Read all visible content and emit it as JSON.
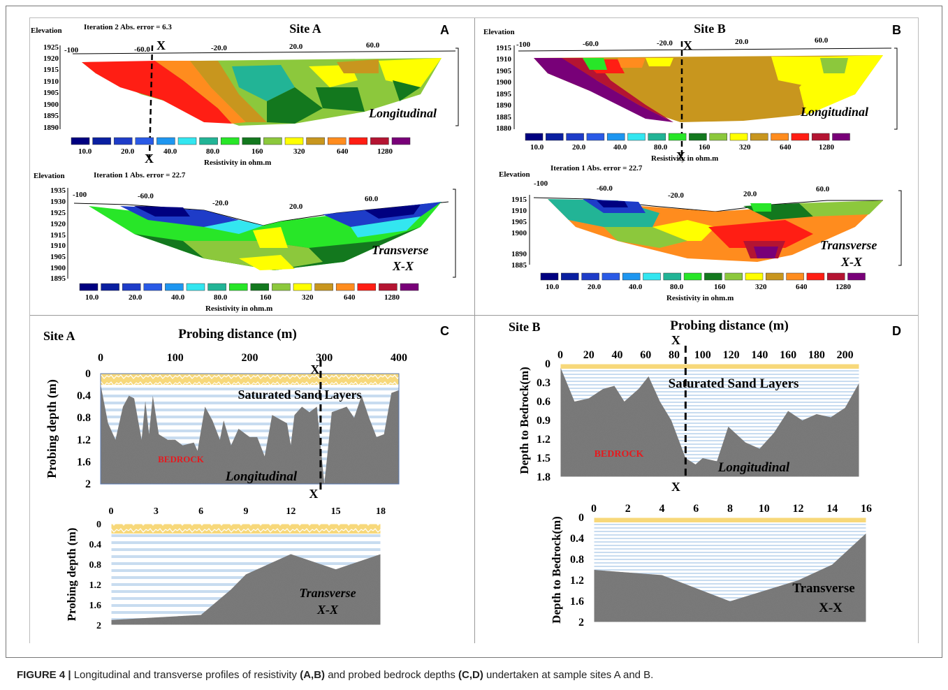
{
  "caption": {
    "label": "FIGURE 4 |",
    "text_1": "Longitudinal and transverse profiles of resistivity ",
    "ref_1": "(A,B)",
    "text_2": " and probed bedrock depths ",
    "ref_2": "(C,D)",
    "text_3": " undertaken at sample sites A and B."
  },
  "colors": {
    "scale": [
      "#000080",
      "#0a1fa0",
      "#1e3cc8",
      "#2a5ae6",
      "#1e96f0",
      "#33e6f0",
      "#22b496",
      "#28e628",
      "#13781e",
      "#8cc83c",
      "#ffff00",
      "#c8961e",
      "#ff8c1e",
      "#ff1e14",
      "#b41432",
      "#780078"
    ],
    "sand": "#c8dcf0",
    "topsoil": "#f7d87a",
    "bedrock_label": "#e6191e"
  },
  "panelA": {
    "letter": "A",
    "site": "Site A",
    "long": {
      "elevation_label": "Elevation",
      "iteration": "Iteration 2 Abs. error = 6.3",
      "x_ticks": [
        "-100",
        "-60.0",
        "-20.0",
        "20.0",
        "60.0"
      ],
      "y_ticks": [
        "1925",
        "1920",
        "1915",
        "1910",
        "1905",
        "1900",
        "1895",
        "1890"
      ],
      "profile_label": "Longitudinal",
      "section_mark": "X",
      "scale_labels": [
        "10.0",
        "20.0",
        "40.0",
        "80.0",
        "160",
        "320",
        "640",
        "1280"
      ],
      "scale_title": "Resistivity in ohm.m"
    },
    "trans": {
      "elevation_label": "Elevation",
      "iteration": "Iteration 1 Abs. error = 22.7",
      "x_ticks": [
        "-100",
        "-60.0",
        "-20.0",
        "20.0",
        "60.0"
      ],
      "y_ticks": [
        "1935",
        "1930",
        "1925",
        "1920",
        "1915",
        "1910",
        "1905",
        "1900",
        "1895"
      ],
      "profile_label_1": "Transverse",
      "profile_label_2": "X-X",
      "scale_labels": [
        "10.0",
        "20.0",
        "40.0",
        "80.0",
        "160",
        "320",
        "640",
        "1280"
      ],
      "scale_title": "Resistivity in ohm.m"
    }
  },
  "panelB": {
    "letter": "B",
    "site": "Site B",
    "long": {
      "elevation_label": "Elevation",
      "x_ticks": [
        "-100",
        "-60.0",
        "-20.0",
        "20.0",
        "60.0"
      ],
      "y_ticks": [
        "1915",
        "1910",
        "1905",
        "1900",
        "1895",
        "1890",
        "1885",
        "1880"
      ],
      "profile_label": "Longitudinal",
      "section_mark": "X",
      "scale_labels": [
        "10.0",
        "20.0",
        "40.0",
        "80.0",
        "160",
        "320",
        "640",
        "1280"
      ],
      "scale_title": "Resistivity in ohm.m"
    },
    "trans": {
      "elevation_label": "Elevation",
      "iteration": "Iteration 1 Abs. error = 22.7",
      "x_ticks": [
        "-100",
        "-60.0",
        "-20.0",
        "20.0",
        "60.0"
      ],
      "y_ticks": [
        "1915",
        "1910",
        "1905",
        "1900",
        "1890",
        "1885"
      ],
      "profile_label_1": "Transverse",
      "profile_label_2": "X-X",
      "scale_labels": [
        "10.0",
        "20.0",
        "40.0",
        "80.0",
        "160",
        "320",
        "640",
        "1280"
      ],
      "scale_title": "Resistivity in ohm.m"
    }
  },
  "panelC": {
    "letter": "C",
    "site": "Site A",
    "xlabel": "Probing distance (m)",
    "long": {
      "ylabel": "Probing depth (m)",
      "x_ticks": [
        "0",
        "100",
        "200",
        "300",
        "400"
      ],
      "y_ticks": [
        "0",
        "0.4",
        "0.8",
        "1.2",
        "1.6",
        "2"
      ],
      "layer_label": "Saturated Sand Layers",
      "bedrock_label": "BEDROCK",
      "profile_label": "Longitudinal",
      "section_mark": "X",
      "profile": [
        [
          0,
          0.2
        ],
        [
          10,
          0.9
        ],
        [
          20,
          1.2
        ],
        [
          30,
          0.6
        ],
        [
          38,
          0.4
        ],
        [
          45,
          0.45
        ],
        [
          55,
          1.2
        ],
        [
          60,
          0.5
        ],
        [
          65,
          1.1
        ],
        [
          70,
          0.4
        ],
        [
          78,
          1.1
        ],
        [
          90,
          1.2
        ],
        [
          100,
          1.2
        ],
        [
          110,
          1.3
        ],
        [
          125,
          1.25
        ],
        [
          130,
          1.4
        ],
        [
          140,
          0.6
        ],
        [
          150,
          0.85
        ],
        [
          160,
          1.2
        ],
        [
          165,
          0.85
        ],
        [
          175,
          1.3
        ],
        [
          185,
          1.0
        ],
        [
          200,
          1.15
        ],
        [
          210,
          1.15
        ],
        [
          220,
          1.5
        ],
        [
          230,
          0.75
        ],
        [
          250,
          0.9
        ],
        [
          255,
          1.3
        ],
        [
          260,
          0.75
        ],
        [
          270,
          0.6
        ],
        [
          280,
          0.7
        ],
        [
          290,
          0.6
        ],
        [
          300,
          2.0
        ],
        [
          310,
          0.7
        ],
        [
          330,
          0.6
        ],
        [
          340,
          0.8
        ],
        [
          350,
          0.4
        ],
        [
          360,
          0.8
        ],
        [
          370,
          1.15
        ],
        [
          380,
          1.1
        ],
        [
          390,
          0.35
        ],
        [
          400,
          0.3
        ]
      ]
    },
    "trans": {
      "ylabel": "Probing depth (m)",
      "x_ticks": [
        "0",
        "3",
        "6",
        "9",
        "12",
        "15",
        "18"
      ],
      "y_ticks": [
        "0",
        "0.4",
        "0.8",
        "1.2",
        "1.6",
        "2"
      ],
      "profile_label_1": "Transverse",
      "profile_label_2": "X-X",
      "profile": [
        [
          0,
          1.9
        ],
        [
          3,
          1.85
        ],
        [
          6,
          1.8
        ],
        [
          8,
          1.3
        ],
        [
          9,
          1.0
        ],
        [
          12,
          0.6
        ],
        [
          15,
          0.9
        ],
        [
          18,
          0.6
        ]
      ]
    }
  },
  "panelD": {
    "letter": "D",
    "site": "Site B",
    "xlabel": "Probing distance (m)",
    "long": {
      "ylabel": "Depth to Bedrock(m)",
      "x_ticks": [
        "0",
        "20",
        "40",
        "60",
        "80",
        "100",
        "120",
        "140",
        "160",
        "180",
        "200"
      ],
      "y_ticks": [
        "0",
        "0.3",
        "0.6",
        "0.9",
        "1.2",
        "1.5",
        "1.8"
      ],
      "layer_label": "Saturated Sand Layers",
      "bedrock_label": "BEDROCK",
      "profile_label": "Longitudinal",
      "section_mark": "X",
      "profile": [
        [
          0,
          0.05
        ],
        [
          10,
          0.6
        ],
        [
          20,
          0.55
        ],
        [
          30,
          0.4
        ],
        [
          38,
          0.35
        ],
        [
          45,
          0.6
        ],
        [
          55,
          0.4
        ],
        [
          62,
          0.2
        ],
        [
          70,
          0.6
        ],
        [
          78,
          0.9
        ],
        [
          88,
          1.5
        ],
        [
          95,
          1.6
        ],
        [
          100,
          1.5
        ],
        [
          110,
          1.55
        ],
        [
          118,
          1.0
        ],
        [
          130,
          1.25
        ],
        [
          140,
          1.35
        ],
        [
          150,
          1.1
        ],
        [
          160,
          0.75
        ],
        [
          170,
          0.9
        ],
        [
          180,
          0.8
        ],
        [
          190,
          0.85
        ],
        [
          200,
          0.7
        ],
        [
          210,
          0.3
        ]
      ]
    },
    "trans": {
      "ylabel": "Depth to Bedrock(m)",
      "x_ticks": [
        "0",
        "2",
        "4",
        "6",
        "8",
        "10",
        "12",
        "14",
        "16"
      ],
      "y_ticks": [
        "0",
        "0.4",
        "0.8",
        "1.2",
        "1.6",
        "2"
      ],
      "profile_label_1": "Transverse",
      "profile_label_2": "X-X",
      "profile": [
        [
          0,
          1.0
        ],
        [
          4,
          1.1
        ],
        [
          8,
          1.6
        ],
        [
          12,
          1.2
        ],
        [
          14,
          0.9
        ],
        [
          16,
          0.3
        ]
      ]
    }
  }
}
